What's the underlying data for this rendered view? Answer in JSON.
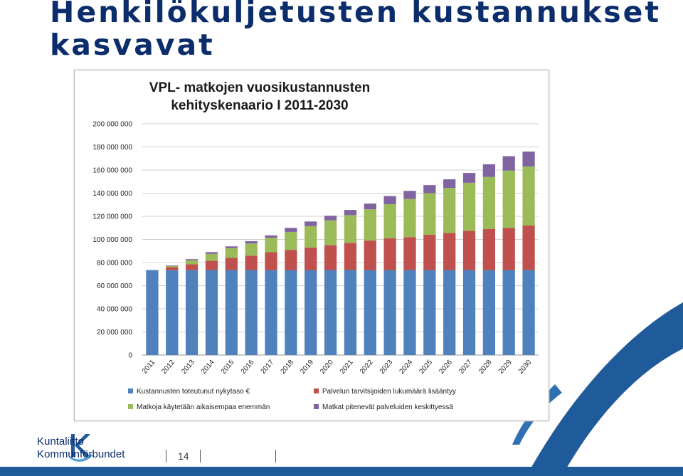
{
  "slide": {
    "title_line1": "Henkilökuljetusten kustannukset",
    "title_line2": "kasvavat",
    "page_number": "14"
  },
  "logo": {
    "line1": "Kuntaliitto",
    "line2": "Kommunförbundet"
  },
  "colors": {
    "title": "#0b2d6b",
    "blue": "#4f81bd",
    "red": "#c0504d",
    "green": "#9bbb59",
    "purple": "#8064a2",
    "accent": "#1f5a9a"
  },
  "chart_data": {
    "type": "bar",
    "stacked": true,
    "title_line1": "VPL- matkojen vuosikustannusten",
    "title_line2": "kehityskenaario I 2011-2030",
    "xlabel": "",
    "ylabel": "",
    "ylim": [
      0,
      200000000
    ],
    "yticks": [
      0,
      20000000,
      40000000,
      60000000,
      80000000,
      100000000,
      120000000,
      140000000,
      160000000,
      180000000,
      200000000
    ],
    "ytick_labels": [
      "0",
      "20 000 000",
      "40 000 000",
      "60 000 000",
      "80 000 000",
      "100 000 000",
      "120 000 000",
      "140 000 000",
      "160 000 000",
      "180 000 000",
      "200 000 000"
    ],
    "grid": true,
    "legend_position": "bottom",
    "categories": [
      "2011",
      "2012",
      "2013",
      "2014",
      "2015",
      "2016",
      "2017",
      "2018",
      "2019",
      "2020",
      "2021",
      "2022",
      "2023",
      "2024",
      "2025",
      "2026",
      "2027",
      "2028",
      "2029",
      "2030"
    ],
    "series": [
      {
        "name": "Kustannusten toteutunut nykytaso €",
        "color": "#4f81bd",
        "values": [
          73500000,
          73500000,
          73500000,
          73500000,
          73500000,
          73500000,
          73500000,
          73500000,
          73500000,
          73500000,
          73500000,
          73500000,
          73500000,
          73500000,
          73500000,
          73500000,
          73500000,
          73500000,
          73500000,
          73500000
        ]
      },
      {
        "name": "Palvelun tarvitsijoiden lukumäärä lisääntyy",
        "color": "#c0504d",
        "values": [
          0,
          2500000,
          5000000,
          8000000,
          10500000,
          12500000,
          15500000,
          17500000,
          19500000,
          21500000,
          23500000,
          25500000,
          27500000,
          28500000,
          30500000,
          32000000,
          34000000,
          35500000,
          36500000,
          38500000
        ]
      },
      {
        "name": "Matkoja käytetään aikaisempaa enemmän",
        "color": "#9bbb59",
        "values": [
          0,
          1000000,
          3500000,
          6000000,
          8500000,
          10500000,
          12500000,
          15500000,
          18500000,
          21500000,
          24000000,
          27000000,
          29500000,
          33000000,
          36000000,
          39000000,
          41500000,
          45000000,
          49500000,
          51000000
        ]
      },
      {
        "name": "Matkat pitenevät palveluiden keskittyessä",
        "color": "#8064a2",
        "values": [
          0,
          500000,
          1000000,
          1500000,
          1500000,
          2000000,
          2000000,
          3500000,
          4000000,
          4000000,
          4500000,
          5000000,
          7000000,
          7000000,
          7000000,
          7500000,
          8500000,
          11000000,
          12500000,
          13000000
        ]
      }
    ]
  }
}
